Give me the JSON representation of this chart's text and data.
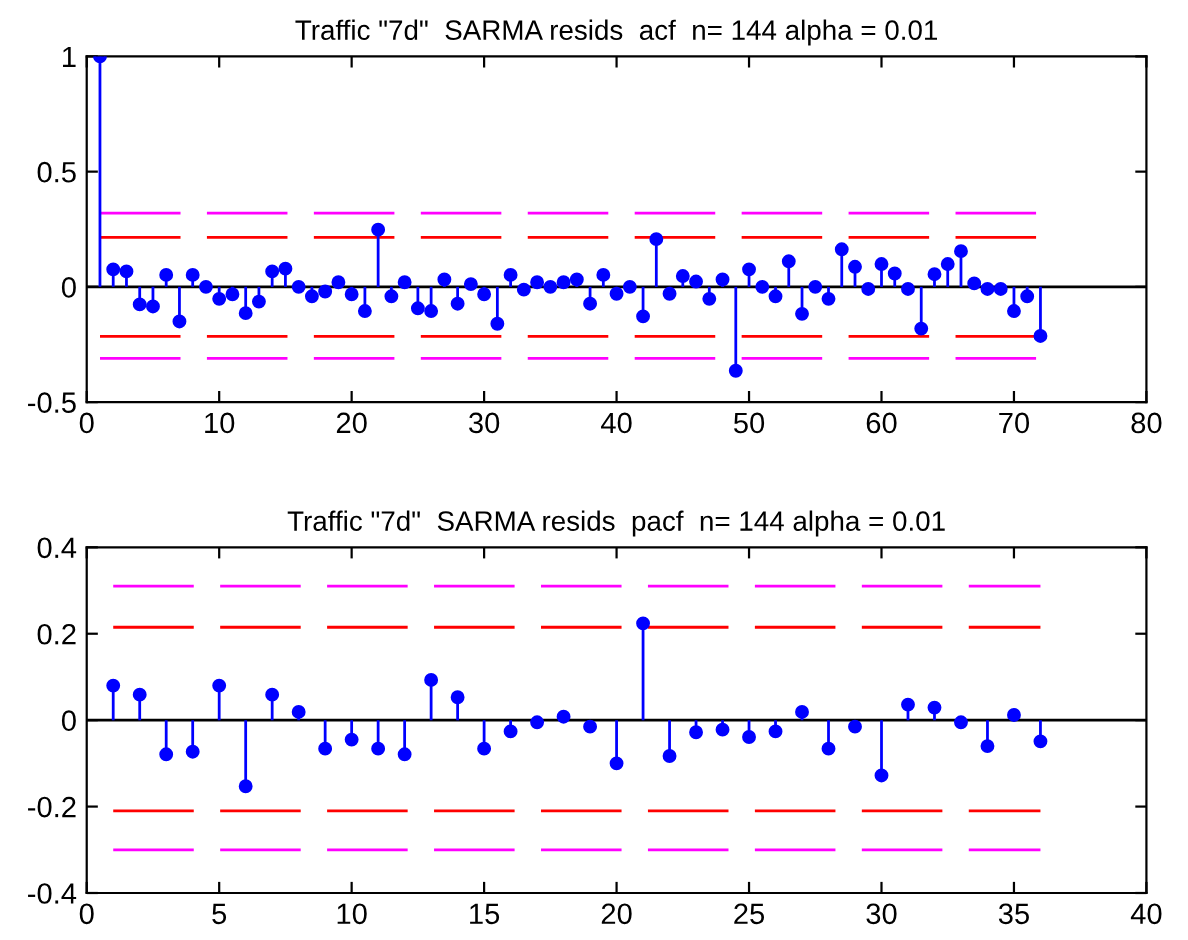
{
  "chart_data": [
    {
      "type": "lollipop",
      "title": "Traffic \"7d\"  SARMA resids  acf  n= 144 alpha = 0.01",
      "x": [
        1,
        2,
        3,
        4,
        5,
        6,
        7,
        8,
        9,
        10,
        11,
        12,
        13,
        14,
        15,
        16,
        17,
        18,
        19,
        20,
        21,
        22,
        23,
        24,
        25,
        26,
        27,
        28,
        29,
        30,
        31,
        32,
        33,
        34,
        35,
        36,
        37,
        38,
        39,
        40,
        41,
        42,
        43,
        44,
        45,
        46,
        47,
        48,
        49,
        50,
        51,
        52,
        53,
        54,
        55,
        56,
        57,
        58,
        59,
        60,
        61,
        62,
        63,
        64,
        65,
        66,
        67,
        68,
        69,
        70,
        71,
        72
      ],
      "series": [
        {
          "color": "#0000ff",
          "values": [
            1,
            0.076,
            0.067,
            -0.076,
            -0.085,
            0.052,
            -0.15,
            0.052,
            0,
            -0.052,
            -0.032,
            -0.114,
            -0.064,
            0.067,
            0.079,
            0,
            -0.041,
            -0.02,
            0.02,
            -0.032,
            -0.105,
            0.248,
            -0.041,
            0.02,
            -0.093,
            -0.105,
            0.032,
            -0.073,
            0.012,
            -0.032,
            -0.16,
            0.052,
            -0.012,
            0.02,
            0,
            0.02,
            0.032,
            -0.073,
            0.052,
            -0.03,
            0,
            -0.128,
            0.207,
            -0.03,
            0.047,
            0.023,
            -0.052,
            0.032,
            -0.364,
            0.076,
            0,
            -0.041,
            0.111,
            -0.117,
            0,
            -0.052,
            0.163,
            0.087,
            -0.009,
            0.099,
            0.058,
            -0.009,
            -0.181,
            0.055,
            0.099,
            0.155,
            0.015,
            -0.009,
            -0.009,
            -0.105,
            -0.041,
            -0.213
          ]
        }
      ],
      "marker": "circle",
      "xlim": [
        0,
        80
      ],
      "xticks": [
        0,
        10,
        20,
        30,
        40,
        50,
        60,
        70,
        80
      ],
      "ylim": [
        -0.5,
        1
      ],
      "yticks": [
        -0.5,
        0,
        0.5,
        1
      ],
      "ref_lines": [
        {
          "axis": "y",
          "value": 0,
          "color": "#000000",
          "line_style": "solid"
        },
        {
          "axis": "y",
          "value": 0.215,
          "color": "#ff0000",
          "line_style": "dashed"
        },
        {
          "axis": "y",
          "value": -0.215,
          "color": "#ff0000",
          "line_style": "dashed"
        },
        {
          "axis": "y",
          "value": 0.32,
          "color": "#ff00ff",
          "line_style": "dashed"
        },
        {
          "axis": "y",
          "value": -0.31,
          "color": "#ff00ff",
          "line_style": "dashed"
        }
      ],
      "grid": false
    },
    {
      "type": "lollipop",
      "title": "Traffic \"7d\"  SARMA resids  pacf  n= 144 alpha = 0.01",
      "x": [
        1,
        2,
        3,
        4,
        5,
        6,
        7,
        8,
        9,
        10,
        11,
        12,
        13,
        14,
        15,
        16,
        17,
        18,
        19,
        20,
        21,
        22,
        23,
        24,
        25,
        26,
        27,
        28,
        29,
        30,
        31,
        32,
        33,
        34,
        35,
        36
      ],
      "series": [
        {
          "color": "#0000ff",
          "values": [
            0.08,
            0.059,
            -0.079,
            -0.073,
            0.08,
            -0.153,
            0.059,
            0.019,
            -0.066,
            -0.045,
            -0.066,
            -0.079,
            0.093,
            0.053,
            -0.066,
            -0.026,
            -0.005,
            0.008,
            -0.015,
            -0.1,
            0.224,
            -0.083,
            -0.028,
            -0.022,
            -0.039,
            -0.026,
            0.019,
            -0.066,
            -0.015,
            -0.128,
            0.036,
            0.029,
            -0.005,
            -0.06,
            0.012,
            -0.049
          ]
        }
      ],
      "marker": "circle",
      "xlim": [
        0,
        40
      ],
      "xticks": [
        0,
        5,
        10,
        15,
        20,
        25,
        30,
        35,
        40
      ],
      "ylim": [
        -0.4,
        0.4
      ],
      "yticks": [
        -0.4,
        -0.2,
        0,
        0.2,
        0.4
      ],
      "ref_lines": [
        {
          "axis": "y",
          "value": 0,
          "color": "#000000",
          "line_style": "solid"
        },
        {
          "axis": "y",
          "value": 0.215,
          "color": "#ff0000",
          "line_style": "dashed"
        },
        {
          "axis": "y",
          "value": -0.21,
          "color": "#ff0000",
          "line_style": "dashed"
        },
        {
          "axis": "y",
          "value": 0.31,
          "color": "#ff00ff",
          "line_style": "dashed"
        },
        {
          "axis": "y",
          "value": -0.3,
          "color": "#ff00ff",
          "line_style": "dashed"
        }
      ],
      "grid": false
    }
  ]
}
